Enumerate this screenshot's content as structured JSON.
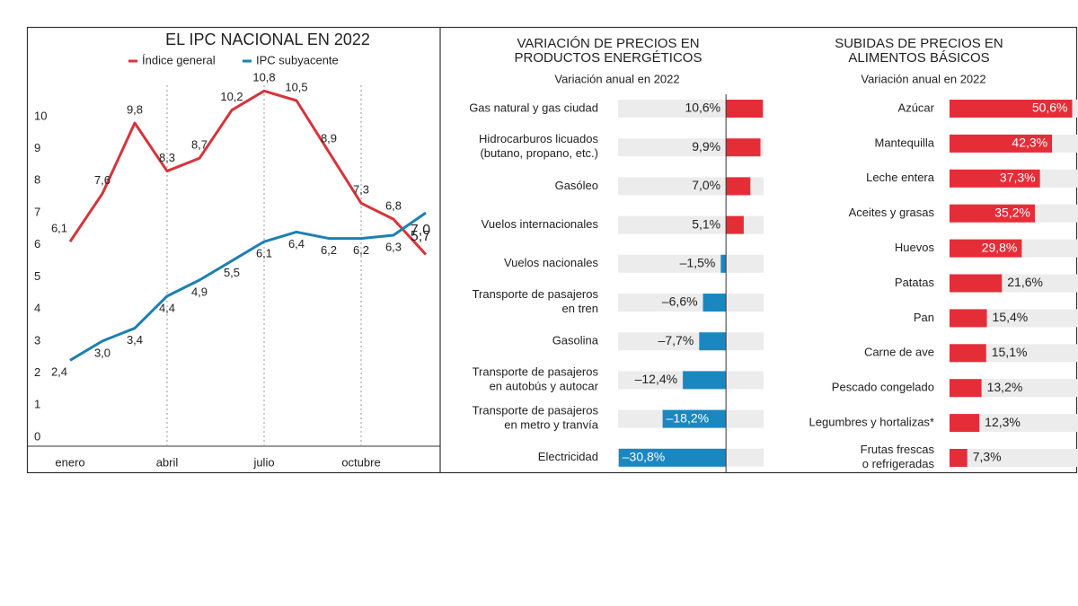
{
  "chart_data": [
    {
      "type": "line",
      "title": "EL IPC NACIONAL EN 2022",
      "categories": [
        "enero",
        null,
        null,
        "abril",
        null,
        null,
        "julio",
        null,
        null,
        "octubre",
        null,
        null
      ],
      "series": [
        {
          "name": "Índice general",
          "color": "#d8333b",
          "values": [
            6.1,
            7.6,
            9.8,
            8.3,
            8.7,
            10.2,
            10.8,
            10.5,
            8.9,
            7.3,
            6.8,
            5.7
          ],
          "value_labels": [
            "6,1",
            "7,6",
            "9,8",
            "8,3",
            "8,7",
            "10,2",
            "10,8",
            "10,5",
            "8,9",
            "7,3",
            "6,8",
            "5,7"
          ]
        },
        {
          "name": "IPC subyacente",
          "color": "#1b80b2",
          "values": [
            2.4,
            3.0,
            3.4,
            4.4,
            4.9,
            5.5,
            6.1,
            6.4,
            6.2,
            6.2,
            6.3,
            7.0
          ],
          "value_labels": [
            "2,4",
            "3,0",
            "3,4",
            "4,4",
            "4,9",
            "5,5",
            "6,1",
            "6,4",
            "6,2",
            "6,2",
            "6,3",
            "7,0"
          ]
        }
      ],
      "ylim": [
        0,
        11.2
      ],
      "yticks": [
        0,
        1,
        2,
        3,
        4,
        5,
        6,
        7,
        8,
        9,
        10
      ],
      "grid": true
    },
    {
      "type": "bar",
      "orientation": "horizontal",
      "title": "VARIACIÓN DE PRECIOS EN\nPRODUCTOS ENERGÉTICOS",
      "subtitle": "Variación anual en 2022",
      "categories": [
        "Gas natural y gas ciudad",
        "Hidrocarburos licuados\n(butano, propano, etc.)",
        "Gasóleo",
        "Vuelos internacionales",
        "Vuelos nacionales",
        "Transporte de pasajeros\nen tren",
        "Gasolina",
        "Transporte de pasajeros\nen autobús y autocar",
        "Transporte de pasajeros\nen metro y tranvía",
        "Electricidad"
      ],
      "values": [
        10.6,
        9.9,
        7.0,
        5.1,
        -1.5,
        -6.6,
        -7.7,
        -12.4,
        -18.2,
        -30.8
      ],
      "value_labels": [
        "10,6%",
        "9,9%",
        "7,0%",
        "5,1%",
        "–1,5%",
        "–6,6%",
        "–7,7%",
        "–12,4%",
        "–18,2%",
        "–30,8%"
      ],
      "positive_color": "#e52d38",
      "negative_color": "#1b87c1",
      "xlim": [
        -31,
        10.8
      ]
    },
    {
      "type": "bar",
      "orientation": "horizontal",
      "title": "SUBIDAS DE PRECIOS EN\nALIMENTOS BÁSICOS",
      "subtitle": "Variación anual en 2022",
      "categories": [
        "Azúcar",
        "Mantequilla",
        "Leche entera",
        "Aceites y grasas",
        "Huevos",
        "Patatas",
        "Pan",
        "Carne de ave",
        "Pescado congelado",
        "Legumbres y hortalizas*",
        "Frutas frescas\no refrigeradas"
      ],
      "values": [
        50.6,
        42.3,
        37.3,
        35.2,
        29.8,
        21.6,
        15.4,
        15.1,
        13.2,
        12.3,
        7.3
      ],
      "value_labels": [
        "50,6%",
        "42,3%",
        "37,3%",
        "35,2%",
        "29,8%",
        "21,6%",
        "15,4%",
        "15,1%",
        "13,2%",
        "12,3%",
        "7,3%"
      ],
      "color": "#e52d38",
      "xlim": [
        0,
        53
      ]
    }
  ]
}
